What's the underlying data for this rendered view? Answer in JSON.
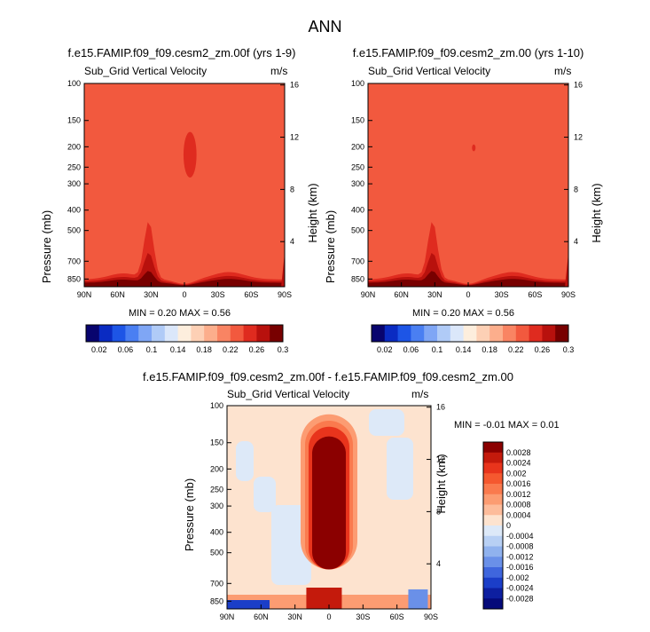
{
  "figure": {
    "title": "ANN",
    "panels": [
      {
        "title": "f.e15.FAMIP.f09_f09.cesm2_zm.00f (yrs 1-9)",
        "variable": "Sub_Grid Vertical Velocity",
        "units": "m/s",
        "minmax": "MIN =  0.20  MAX =  0.56",
        "ylabel": "Pressure (mb)",
        "ylabel_right": "Height (km)"
      },
      {
        "title": "f.e15.FAMIP.f09_f09.cesm2_zm.00 (yrs 1-10)",
        "variable": "Sub_Grid Vertical Velocity",
        "units": "m/s",
        "minmax": "MIN =  0.20  MAX =  0.56",
        "ylabel": "Pressure (mb)",
        "ylabel_right": "Height (km)"
      },
      {
        "title": "f.e15.FAMIP.f09_f09.cesm2_zm.00f - f.e15.FAMIP.f09_f09.cesm2_zm.00",
        "variable": "Sub_Grid Vertical Velocity",
        "units": "m/s",
        "minmax": "MIN =  -0.01  MAX =  0.01",
        "ylabel": "Pressure (mb)",
        "ylabel_right": "Height (km)"
      }
    ],
    "colorbar_abs": {
      "labels": [
        "0.02",
        "0.06",
        "0.1",
        "0.14",
        "0.18",
        "0.22",
        "0.26",
        "0.3"
      ],
      "colors": [
        "#08046e",
        "#0a2bc2",
        "#1d55e6",
        "#4a7ff2",
        "#7fa6f5",
        "#b0cbf7",
        "#dbe7fa",
        "#fdeedd",
        "#fdd0b5",
        "#fcae8c",
        "#f98463",
        "#f2593e",
        "#df2b1f",
        "#b8110d",
        "#780000"
      ]
    },
    "colorbar_diff": {
      "labels": [
        "0.0028",
        "0.0024",
        "0.002",
        "0.0016",
        "0.0012",
        "0.0008",
        "0.0004",
        "0",
        "-0.0004",
        "-0.0008",
        "-0.0012",
        "-0.0016",
        "-0.002",
        "-0.0024",
        "-0.0028"
      ],
      "colors": [
        "#8b0000",
        "#c41a0c",
        "#e8341c",
        "#f5582f",
        "#fa7a4e",
        "#fc9c72",
        "#fdbc9b",
        "#fde3cf",
        "#dde9f8",
        "#b8d0f4",
        "#90b2ee",
        "#6a90e8",
        "#3f66dd",
        "#1b3ec8",
        "#0d1fa0",
        "#050a7a"
      ]
    }
  },
  "chart_data": [
    {
      "type": "heatmap",
      "title": "f.e15.FAMIP.f09_f09.cesm2_zm.00f (yrs 1-9)",
      "subtitle": "Sub_Grid Vertical Velocity",
      "units": "m/s",
      "xlabel": "",
      "ylabel": "Pressure (mb)",
      "ylabel_right": "Height (km)",
      "x_ticks": [
        "90N",
        "60N",
        "30N",
        "0",
        "30S",
        "60S",
        "90S"
      ],
      "x_range": [
        90,
        -90
      ],
      "y_ticks": [
        100,
        150,
        200,
        250,
        300,
        400,
        500,
        700,
        850
      ],
      "y_range_mb": [
        100,
        925
      ],
      "y_right_ticks": [
        4,
        8,
        12,
        16
      ],
      "y_scale": "log",
      "min": 0.2,
      "max": 0.56,
      "contour_levels": [
        0.02,
        0.04,
        0.06,
        0.08,
        0.1,
        0.12,
        0.14,
        0.16,
        0.18,
        0.2,
        0.22,
        0.24,
        0.26,
        0.28,
        0.3
      ],
      "description_values": {
        "background_level": 0.22,
        "features": [
          {
            "lat": -5,
            "p_mb": [
              170,
              280
            ],
            "value": 0.24
          },
          {
            "lat": 32,
            "p_mb": [
              450,
              925
            ],
            "value": 0.26
          },
          {
            "lat": 60,
            "p_mb": [
              700,
              925
            ],
            "value": 0.3
          },
          {
            "lat": -40,
            "p_mb": [
              700,
              925
            ],
            "value": 0.28
          }
        ]
      }
    },
    {
      "type": "heatmap",
      "title": "f.e15.FAMIP.f09_f09.cesm2_zm.00 (yrs 1-10)",
      "subtitle": "Sub_Grid Vertical Velocity",
      "units": "m/s",
      "ylabel": "Pressure (mb)",
      "ylabel_right": "Height (km)",
      "x_ticks": [
        "90N",
        "60N",
        "30N",
        "0",
        "30S",
        "60S",
        "90S"
      ],
      "x_range": [
        90,
        -90
      ],
      "y_ticks": [
        100,
        150,
        200,
        250,
        300,
        400,
        500,
        700,
        850
      ],
      "y_range_mb": [
        100,
        925
      ],
      "y_right_ticks": [
        4,
        8,
        12,
        16
      ],
      "y_scale": "log",
      "min": 0.2,
      "max": 0.56,
      "description_values": {
        "background_level": 0.22,
        "features": [
          {
            "lat": -5,
            "p_mb": [
              195,
              210
            ],
            "value": 0.24
          },
          {
            "lat": 32,
            "p_mb": [
              450,
              925
            ],
            "value": 0.26
          },
          {
            "lat": 60,
            "p_mb": [
              700,
              925
            ],
            "value": 0.3
          },
          {
            "lat": -40,
            "p_mb": [
              700,
              925
            ],
            "value": 0.28
          }
        ]
      }
    },
    {
      "type": "heatmap",
      "title": "f.e15.FAMIP.f09_f09.cesm2_zm.00f - f.e15.FAMIP.f09_f09.cesm2_zm.00",
      "subtitle": "Sub_Grid Vertical Velocity",
      "units": "m/s",
      "ylabel": "Pressure (mb)",
      "ylabel_right": "Height (km)",
      "x_ticks": [
        "90N",
        "60N",
        "30N",
        "0",
        "30S",
        "60S",
        "90S"
      ],
      "x_range": [
        90,
        -90
      ],
      "y_ticks": [
        100,
        150,
        200,
        250,
        300,
        400,
        500,
        700,
        850
      ],
      "y_range_mb": [
        100,
        925
      ],
      "y_right_ticks": [
        4,
        8,
        12,
        16
      ],
      "y_scale": "log",
      "min": -0.01,
      "max": 0.01,
      "contour_levels": [
        -0.0028,
        -0.0024,
        -0.002,
        -0.0016,
        -0.0012,
        -0.0008,
        -0.0004,
        0,
        0.0004,
        0.0008,
        0.0012,
        0.0016,
        0.002,
        0.0024,
        0.0028
      ],
      "description_values": {
        "features": [
          {
            "lat": 0,
            "p_mb": [
              120,
              600
            ],
            "value": 0.0028
          },
          {
            "lat": -10,
            "p_mb": [
              600,
              925
            ],
            "value": 0.0012
          },
          {
            "lat": 80,
            "p_mb": [
              800,
              925
            ],
            "value": -0.0028
          },
          {
            "lat": -80,
            "p_mb": [
              600,
              925
            ],
            "value": -0.002
          }
        ]
      }
    }
  ]
}
